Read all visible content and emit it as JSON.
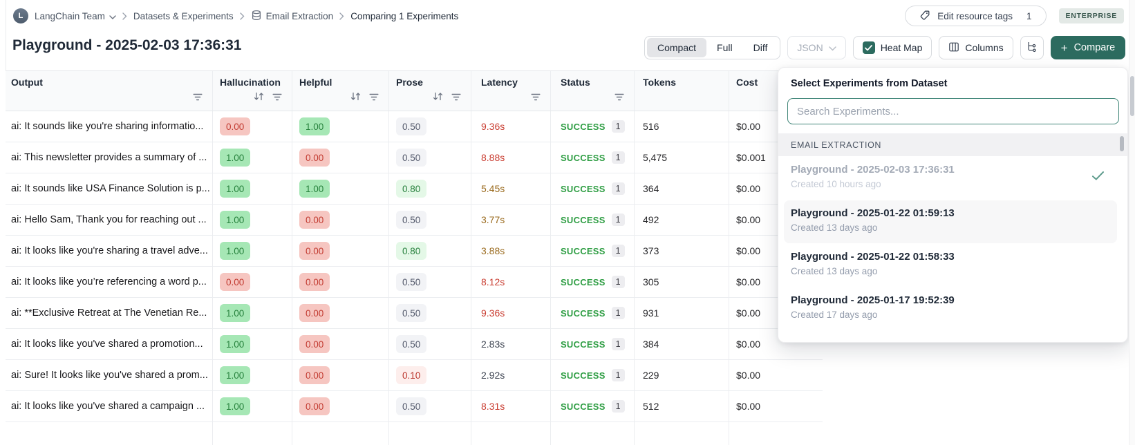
{
  "topbar": {
    "avatar_letter": "L",
    "team": "LangChain Team",
    "breadcrumbs": [
      "Datasets & Experiments",
      "Email Extraction",
      "Comparing 1 Experiments"
    ],
    "edit_tags_label": "Edit resource tags",
    "edit_tags_count": "1",
    "plan_badge": "ENTERPRISE"
  },
  "header": {
    "title": "Playground - 2025-02-03 17:36:31",
    "view_modes": [
      "Compact",
      "Full",
      "Diff"
    ],
    "active_view_mode": "Compact",
    "format_dropdown": "JSON",
    "heatmap_label": "Heat Map",
    "heatmap_checked": true,
    "columns_label": "Columns",
    "compare_label": "Compare"
  },
  "table": {
    "columns": [
      {
        "label": "Output",
        "sortable": false,
        "filterable": true
      },
      {
        "label": "Hallucination",
        "sortable": true,
        "filterable": true
      },
      {
        "label": "Helpful",
        "sortable": true,
        "filterable": true
      },
      {
        "label": "Prose",
        "sortable": true,
        "filterable": true
      },
      {
        "label": "Latency",
        "sortable": false,
        "filterable": true
      },
      {
        "label": "Status",
        "sortable": false,
        "filterable": true
      },
      {
        "label": "Tokens",
        "sortable": false,
        "filterable": false
      },
      {
        "label": "Cost",
        "sortable": false,
        "filterable": false
      }
    ],
    "rows": [
      {
        "output": "ai: It sounds like you're sharing informatio...",
        "hallucination": {
          "value": "0.00",
          "tone": "bad"
        },
        "helpful": {
          "value": "1.00",
          "tone": "good"
        },
        "prose": {
          "value": "0.50",
          "tone": "neutral"
        },
        "latency": {
          "value": "9.36s",
          "tone": "slow"
        },
        "status": "SUCCESS",
        "run_count": "1",
        "tokens": "516",
        "cost": "$0.00"
      },
      {
        "output": "ai: This newsletter provides a summary of ...",
        "hallucination": {
          "value": "1.00",
          "tone": "good"
        },
        "helpful": {
          "value": "0.00",
          "tone": "bad"
        },
        "prose": {
          "value": "0.50",
          "tone": "neutral"
        },
        "latency": {
          "value": "8.88s",
          "tone": "slow"
        },
        "status": "SUCCESS",
        "run_count": "1",
        "tokens": "5,475",
        "cost": "$0.001"
      },
      {
        "output": "ai: It sounds like USA Finance Solution is p...",
        "hallucination": {
          "value": "1.00",
          "tone": "good"
        },
        "helpful": {
          "value": "1.00",
          "tone": "good"
        },
        "prose": {
          "value": "0.80",
          "tone": "goodsoft"
        },
        "latency": {
          "value": "5.45s",
          "tone": "med"
        },
        "status": "SUCCESS",
        "run_count": "1",
        "tokens": "364",
        "cost": "$0.00"
      },
      {
        "output": "ai: Hello Sam, Thank you for reaching out ...",
        "hallucination": {
          "value": "1.00",
          "tone": "good"
        },
        "helpful": {
          "value": "0.00",
          "tone": "bad"
        },
        "prose": {
          "value": "0.50",
          "tone": "neutral"
        },
        "latency": {
          "value": "3.77s",
          "tone": "med"
        },
        "status": "SUCCESS",
        "run_count": "1",
        "tokens": "492",
        "cost": "$0.00"
      },
      {
        "output": "ai: It looks like you're sharing a travel adve...",
        "hallucination": {
          "value": "1.00",
          "tone": "good"
        },
        "helpful": {
          "value": "0.00",
          "tone": "bad"
        },
        "prose": {
          "value": "0.80",
          "tone": "goodsoft"
        },
        "latency": {
          "value": "3.88s",
          "tone": "med"
        },
        "status": "SUCCESS",
        "run_count": "1",
        "tokens": "373",
        "cost": "$0.00"
      },
      {
        "output": "ai: It looks like you’re referencing a word p...",
        "hallucination": {
          "value": "0.00",
          "tone": "bad"
        },
        "helpful": {
          "value": "0.00",
          "tone": "bad"
        },
        "prose": {
          "value": "0.50",
          "tone": "neutral"
        },
        "latency": {
          "value": "8.12s",
          "tone": "slow"
        },
        "status": "SUCCESS",
        "run_count": "1",
        "tokens": "305",
        "cost": "$0.00"
      },
      {
        "output": "ai: **Exclusive Retreat at The Venetian Re...",
        "hallucination": {
          "value": "1.00",
          "tone": "good"
        },
        "helpful": {
          "value": "0.00",
          "tone": "bad"
        },
        "prose": {
          "value": "0.50",
          "tone": "neutral"
        },
        "latency": {
          "value": "9.36s",
          "tone": "slow"
        },
        "status": "SUCCESS",
        "run_count": "1",
        "tokens": "931",
        "cost": "$0.00"
      },
      {
        "output": "ai: It looks like you've shared a promotion...",
        "hallucination": {
          "value": "1.00",
          "tone": "good"
        },
        "helpful": {
          "value": "0.00",
          "tone": "bad"
        },
        "prose": {
          "value": "0.50",
          "tone": "neutral"
        },
        "latency": {
          "value": "2.83s",
          "tone": "fast"
        },
        "status": "SUCCESS",
        "run_count": "1",
        "tokens": "384",
        "cost": "$0.00"
      },
      {
        "output": "ai: Sure! It looks like you've shared a prom...",
        "hallucination": {
          "value": "1.00",
          "tone": "good"
        },
        "helpful": {
          "value": "0.00",
          "tone": "bad"
        },
        "prose": {
          "value": "0.10",
          "tone": "badsoft"
        },
        "latency": {
          "value": "2.92s",
          "tone": "fast"
        },
        "status": "SUCCESS",
        "run_count": "1",
        "tokens": "229",
        "cost": "$0.00"
      },
      {
        "output": "ai: It looks like you've shared a campaign ...",
        "hallucination": {
          "value": "1.00",
          "tone": "good"
        },
        "helpful": {
          "value": "0.00",
          "tone": "bad"
        },
        "prose": {
          "value": "0.50",
          "tone": "neutral"
        },
        "latency": {
          "value": "8.31s",
          "tone": "slow"
        },
        "status": "SUCCESS",
        "run_count": "1",
        "tokens": "512",
        "cost": "$0.00"
      }
    ]
  },
  "experiment_picker": {
    "title": "Select Experiments from Dataset",
    "search_placeholder": "Search Experiments...",
    "group_label": "EMAIL EXTRACTION",
    "items": [
      {
        "name": "Playground - 2025-02-03 17:36:31",
        "created": "Created 10 hours ago",
        "selected": true,
        "disabled": true,
        "hovered": false
      },
      {
        "name": "Playground - 2025-01-22 01:59:13",
        "created": "Created 13 days ago",
        "selected": false,
        "disabled": false,
        "hovered": true
      },
      {
        "name": "Playground - 2025-01-22 01:58:33",
        "created": "Created 13 days ago",
        "selected": false,
        "disabled": false,
        "hovered": false
      },
      {
        "name": "Playground - 2025-01-17 19:52:39",
        "created": "Created 17 days ago",
        "selected": false,
        "disabled": false,
        "hovered": false
      }
    ]
  },
  "colors": {
    "accent_teal": "#2c6b5f",
    "success_green": "#2f9e44",
    "badge_good_bg": "#a6e7b5",
    "badge_good_text": "#26813c",
    "badge_bad_bg": "#f6c6c1",
    "badge_bad_text": "#c23a30",
    "badge_neutral_bg": "#f2f3f6",
    "latency_slow": "#c93c30",
    "latency_medium": "#9a6a1d",
    "enterprise_badge_bg": "#e3e9e6",
    "enterprise_badge_text": "#3c5a50"
  }
}
